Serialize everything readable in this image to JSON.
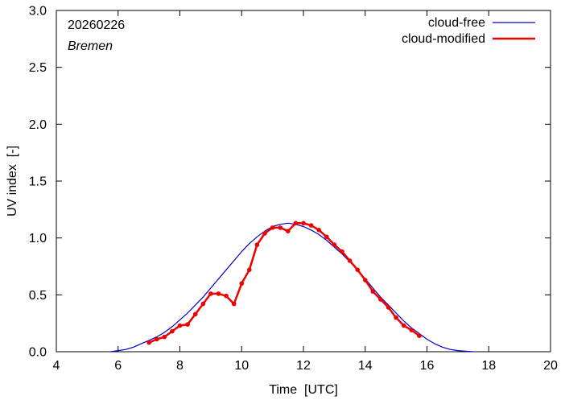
{
  "chart_data": {
    "type": "line",
    "title": "",
    "annotation_date": "20260226",
    "annotation_location": "Bremen",
    "xlabel": "Time  [UTC]",
    "ylabel": "UV index  [-]",
    "xlim": [
      4,
      20
    ],
    "ylim": [
      0,
      3.0
    ],
    "x_ticks": [
      4,
      6,
      8,
      10,
      12,
      14,
      16,
      18,
      20
    ],
    "y_ticks": [
      0.0,
      0.5,
      1.0,
      1.5,
      2.0,
      2.5,
      3.0
    ],
    "x_tick_labels": [
      "4",
      "6",
      "8",
      "10",
      "12",
      "14",
      "16",
      "18",
      "20"
    ],
    "y_tick_labels": [
      "0.0",
      "0.5",
      "1.0",
      "1.5",
      "2.0",
      "2.5",
      "3.0"
    ],
    "grid": false,
    "legend_position": "top-right",
    "series": [
      {
        "name": "cloud-free",
        "color": "#0000cc",
        "markers": false,
        "x": [
          5.75,
          6.0,
          6.25,
          6.5,
          6.75,
          7.0,
          7.25,
          7.5,
          7.75,
          8.0,
          8.25,
          8.5,
          8.75,
          9.0,
          9.25,
          9.5,
          9.75,
          10.0,
          10.25,
          10.5,
          10.75,
          11.0,
          11.25,
          11.5,
          11.75,
          12.0,
          12.25,
          12.5,
          12.75,
          13.0,
          13.25,
          13.5,
          13.75,
          14.0,
          14.25,
          14.5,
          14.75,
          15.0,
          15.25,
          15.5,
          15.75,
          16.0,
          16.25,
          16.5,
          16.75,
          17.0,
          17.25,
          17.5
        ],
        "y": [
          0.0,
          0.01,
          0.02,
          0.04,
          0.07,
          0.1,
          0.13,
          0.17,
          0.22,
          0.28,
          0.34,
          0.41,
          0.48,
          0.56,
          0.64,
          0.72,
          0.8,
          0.88,
          0.95,
          1.01,
          1.06,
          1.1,
          1.12,
          1.13,
          1.12,
          1.1,
          1.07,
          1.03,
          0.98,
          0.92,
          0.86,
          0.79,
          0.72,
          0.64,
          0.56,
          0.48,
          0.41,
          0.34,
          0.27,
          0.21,
          0.16,
          0.11,
          0.07,
          0.04,
          0.02,
          0.01,
          0.005,
          0.0
        ]
      },
      {
        "name": "cloud-modified",
        "color": "#ee0000",
        "markers": true,
        "x": [
          7.0,
          7.25,
          7.5,
          7.75,
          8.0,
          8.25,
          8.5,
          8.75,
          9.0,
          9.25,
          9.5,
          9.75,
          10.0,
          10.25,
          10.5,
          10.75,
          11.0,
          11.25,
          11.5,
          11.75,
          12.0,
          12.25,
          12.5,
          12.75,
          13.0,
          13.25,
          13.5,
          13.75,
          14.0,
          14.25,
          14.5,
          14.75,
          15.0,
          15.25,
          15.5,
          15.75
        ],
        "y": [
          0.08,
          0.11,
          0.13,
          0.18,
          0.23,
          0.24,
          0.33,
          0.42,
          0.51,
          0.51,
          0.49,
          0.42,
          0.6,
          0.72,
          0.94,
          1.04,
          1.09,
          1.09,
          1.06,
          1.13,
          1.13,
          1.11,
          1.07,
          1.01,
          0.94,
          0.88,
          0.8,
          0.72,
          0.63,
          0.53,
          0.46,
          0.39,
          0.3,
          0.23,
          0.19,
          0.14
        ]
      }
    ]
  }
}
